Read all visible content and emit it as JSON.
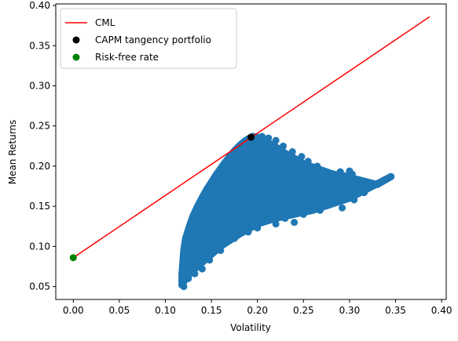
{
  "chart_data": {
    "type": "scatter",
    "xlabel": "Volatility",
    "ylabel": "Mean Returns",
    "xlim": [
      -0.019,
      0.405
    ],
    "ylim": [
      0.034,
      0.402
    ],
    "xticks": [
      "0.00",
      "0.05",
      "0.10",
      "0.15",
      "0.20",
      "0.25",
      "0.30",
      "0.35",
      "0.40"
    ],
    "yticks": [
      "0.05",
      "0.10",
      "0.15",
      "0.20",
      "0.25",
      "0.30",
      "0.35",
      "0.40"
    ],
    "grid": false,
    "legend_position": "top-left",
    "series": [
      {
        "name": "CML",
        "kind": "line",
        "color": "#ff0000",
        "x": [
          0.0,
          0.387
        ],
        "y": [
          0.086,
          0.386
        ]
      },
      {
        "name": "CAPM tangency portfolio",
        "kind": "point",
        "color": "#000000",
        "x": [
          0.193
        ],
        "y": [
          0.236
        ]
      },
      {
        "name": "Risk-free rate",
        "kind": "point",
        "color": "#008000",
        "x": [
          0.0
        ],
        "y": [
          0.086
        ]
      },
      {
        "kind": "scatter",
        "color": "#1f77b4",
        "boundary": {
          "x": [
            0.118,
            0.12,
            0.122,
            0.126,
            0.13,
            0.135,
            0.14,
            0.145,
            0.15,
            0.155,
            0.16,
            0.165,
            0.17,
            0.175,
            0.18,
            0.185,
            0.19,
            0.195,
            0.2,
            0.205,
            0.21,
            0.22,
            0.23,
            0.24,
            0.25,
            0.26,
            0.27,
            0.28,
            0.29,
            0.3,
            0.31,
            0.32,
            0.33,
            0.345,
            0.3,
            0.26,
            0.24,
            0.22,
            0.2,
            0.18,
            0.16,
            0.145,
            0.135,
            0.128,
            0.122,
            0.118
          ],
          "y": [
            0.065,
            0.095,
            0.11,
            0.125,
            0.138,
            0.15,
            0.161,
            0.171,
            0.18,
            0.189,
            0.197,
            0.205,
            0.212,
            0.219,
            0.225,
            0.23,
            0.234,
            0.237,
            0.236,
            0.233,
            0.23,
            0.224,
            0.216,
            0.21,
            0.203,
            0.199,
            0.195,
            0.191,
            0.188,
            0.186,
            0.183,
            0.18,
            0.177,
            0.187,
            0.16,
            0.145,
            0.14,
            0.135,
            0.128,
            0.115,
            0.1,
            0.085,
            0.075,
            0.068,
            0.06,
            0.052
          ]
        },
        "points": [
          {
            "x": 0.12,
            "y": 0.05
          },
          {
            "x": 0.345,
            "y": 0.187
          },
          {
            "x": 0.32,
            "y": 0.177
          },
          {
            "x": 0.316,
            "y": 0.167
          },
          {
            "x": 0.31,
            "y": 0.182
          },
          {
            "x": 0.303,
            "y": 0.19
          },
          {
            "x": 0.3,
            "y": 0.194
          },
          {
            "x": 0.29,
            "y": 0.193
          },
          {
            "x": 0.295,
            "y": 0.188
          },
          {
            "x": 0.286,
            "y": 0.185
          },
          {
            "x": 0.29,
            "y": 0.175
          },
          {
            "x": 0.297,
            "y": 0.172
          },
          {
            "x": 0.29,
            "y": 0.16
          },
          {
            "x": 0.3,
            "y": 0.165
          },
          {
            "x": 0.305,
            "y": 0.158
          },
          {
            "x": 0.292,
            "y": 0.148
          },
          {
            "x": 0.28,
            "y": 0.155
          },
          {
            "x": 0.27,
            "y": 0.18
          },
          {
            "x": 0.265,
            "y": 0.2
          },
          {
            "x": 0.255,
            "y": 0.206
          },
          {
            "x": 0.248,
            "y": 0.212
          },
          {
            "x": 0.238,
            "y": 0.218
          },
          {
            "x": 0.228,
            "y": 0.225
          },
          {
            "x": 0.22,
            "y": 0.232
          },
          {
            "x": 0.212,
            "y": 0.235
          },
          {
            "x": 0.205,
            "y": 0.237
          },
          {
            "x": 0.26,
            "y": 0.16
          },
          {
            "x": 0.268,
            "y": 0.145
          },
          {
            "x": 0.25,
            "y": 0.14
          },
          {
            "x": 0.24,
            "y": 0.13
          },
          {
            "x": 0.23,
            "y": 0.135
          },
          {
            "x": 0.22,
            "y": 0.128
          },
          {
            "x": 0.2,
            "y": 0.123
          },
          {
            "x": 0.19,
            "y": 0.118
          },
          {
            "x": 0.175,
            "y": 0.11
          },
          {
            "x": 0.16,
            "y": 0.095
          },
          {
            "x": 0.148,
            "y": 0.083
          },
          {
            "x": 0.14,
            "y": 0.072
          },
          {
            "x": 0.132,
            "y": 0.066
          },
          {
            "x": 0.125,
            "y": 0.06
          }
        ]
      }
    ]
  }
}
